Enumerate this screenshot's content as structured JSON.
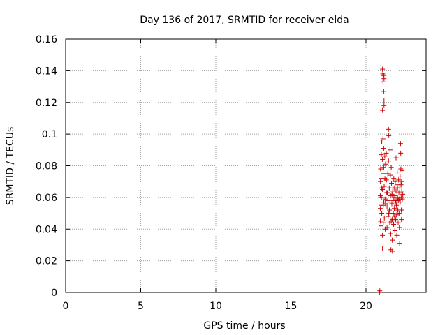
{
  "chart_data": {
    "type": "scatter",
    "title": "Day 136 of 2017, SRMTID for receiver elda",
    "xlabel": "GPS time / hours",
    "ylabel": "SRMTID / TECUs",
    "xlim": [
      0,
      24
    ],
    "ylim": [
      0,
      0.16
    ],
    "xticks": [
      0,
      5,
      10,
      15,
      20
    ],
    "xtick_labels": [
      "0",
      "5",
      "10",
      "15",
      "20"
    ],
    "yticks": [
      0,
      0.02,
      0.04,
      0.06,
      0.08,
      0.1,
      0.12,
      0.14,
      0.16
    ],
    "ytick_labels": [
      "0",
      "0.02",
      "0.04",
      "0.06",
      "0.08",
      "0.1",
      "0.12",
      "0.14",
      "0.16"
    ],
    "grid": true,
    "legend": false,
    "marker": "plus",
    "marker_color": "#cc0000",
    "series": [
      {
        "points": [
          [
            20.9,
            0.0
          ],
          [
            20.92,
            0.001
          ],
          [
            20.95,
            0.045
          ],
          [
            20.95,
            0.053
          ],
          [
            20.95,
            0.061
          ],
          [
            20.96,
            0.07
          ],
          [
            20.97,
            0.078
          ],
          [
            21.0,
            0.042
          ],
          [
            21.0,
            0.055
          ],
          [
            21.0,
            0.072
          ],
          [
            21.02,
            0.087
          ],
          [
            21.03,
            0.06
          ],
          [
            21.05,
            0.095
          ],
          [
            21.05,
            0.066
          ],
          [
            21.05,
            0.05
          ],
          [
            21.1,
            0.141
          ],
          [
            21.1,
            0.115
          ],
          [
            21.1,
            0.084
          ],
          [
            21.1,
            0.065
          ],
          [
            21.1,
            0.036
          ],
          [
            21.1,
            0.028
          ],
          [
            21.12,
            0.138
          ],
          [
            21.13,
            0.133
          ],
          [
            21.13,
            0.097
          ],
          [
            21.14,
            0.075
          ],
          [
            21.15,
            0.055
          ],
          [
            21.15,
            0.044
          ],
          [
            21.18,
            0.137
          ],
          [
            21.18,
            0.127
          ],
          [
            21.18,
            0.091
          ],
          [
            21.18,
            0.079
          ],
          [
            21.19,
            0.057
          ],
          [
            21.2,
            0.135
          ],
          [
            21.2,
            0.121
          ],
          [
            21.2,
            0.118
          ],
          [
            21.21,
            0.067
          ],
          [
            21.22,
            0.047
          ],
          [
            21.25,
            0.086
          ],
          [
            21.26,
            0.072
          ],
          [
            21.27,
            0.059
          ],
          [
            21.28,
            0.04
          ],
          [
            21.3,
            0.081
          ],
          [
            21.35,
            0.088
          ],
          [
            21.36,
            0.071
          ],
          [
            21.38,
            0.063
          ],
          [
            21.4,
            0.054
          ],
          [
            21.4,
            0.041
          ],
          [
            21.45,
            0.075
          ],
          [
            21.46,
            0.058
          ],
          [
            21.48,
            0.048
          ],
          [
            21.5,
            0.103
          ],
          [
            21.5,
            0.083
          ],
          [
            21.52,
            0.099
          ],
          [
            21.55,
            0.066
          ],
          [
            21.56,
            0.052
          ],
          [
            21.58,
            0.044
          ],
          [
            21.6,
            0.09
          ],
          [
            21.62,
            0.074
          ],
          [
            21.63,
            0.061
          ],
          [
            21.65,
            0.037
          ],
          [
            21.66,
            0.027
          ],
          [
            21.68,
            0.079
          ],
          [
            21.7,
            0.069
          ],
          [
            21.72,
            0.056
          ],
          [
            21.74,
            0.046
          ],
          [
            21.75,
            0.033
          ],
          [
            21.76,
            0.026
          ],
          [
            21.78,
            0.064
          ],
          [
            21.8,
            0.058
          ],
          [
            21.82,
            0.05
          ],
          [
            21.84,
            0.043
          ],
          [
            21.85,
            0.072
          ],
          [
            21.87,
            0.066
          ],
          [
            21.88,
            0.053
          ],
          [
            21.9,
            0.048
          ],
          [
            21.92,
            0.039
          ],
          [
            21.93,
            0.061
          ],
          [
            21.95,
            0.07
          ],
          [
            21.96,
            0.057
          ],
          [
            21.98,
            0.046
          ],
          [
            22.0,
            0.085
          ],
          [
            22.0,
            0.064
          ],
          [
            22.02,
            0.055
          ],
          [
            22.04,
            0.049
          ],
          [
            22.05,
            0.036
          ],
          [
            22.07,
            0.068
          ],
          [
            22.08,
            0.076
          ],
          [
            22.1,
            0.06
          ],
          [
            22.12,
            0.052
          ],
          [
            22.14,
            0.044
          ],
          [
            22.15,
            0.058
          ],
          [
            22.17,
            0.071
          ],
          [
            22.19,
            0.063
          ],
          [
            22.2,
            0.05
          ],
          [
            22.22,
            0.041
          ],
          [
            22.24,
            0.031
          ],
          [
            22.25,
            0.066
          ],
          [
            22.27,
            0.073
          ],
          [
            22.28,
            0.057
          ],
          [
            22.3,
            0.094
          ],
          [
            22.31,
            0.088
          ],
          [
            22.32,
            0.078
          ],
          [
            22.33,
            0.068
          ],
          [
            22.34,
            0.06
          ],
          [
            22.35,
            0.052
          ],
          [
            22.36,
            0.046
          ],
          [
            22.37,
            0.07
          ],
          [
            22.38,
            0.064
          ],
          [
            22.4,
            0.077
          ],
          [
            22.42,
            0.059
          ],
          [
            22.45,
            0.062
          ],
          [
            21.3,
            0.056
          ],
          [
            21.42,
            0.063
          ],
          [
            21.6,
            0.057
          ],
          [
            21.73,
            0.062
          ],
          [
            21.86,
            0.06
          ],
          [
            22.0,
            0.058
          ],
          [
            22.1,
            0.066
          ],
          [
            22.2,
            0.059
          ],
          [
            21.52,
            0.05
          ],
          [
            21.68,
            0.045
          ]
        ]
      }
    ]
  }
}
